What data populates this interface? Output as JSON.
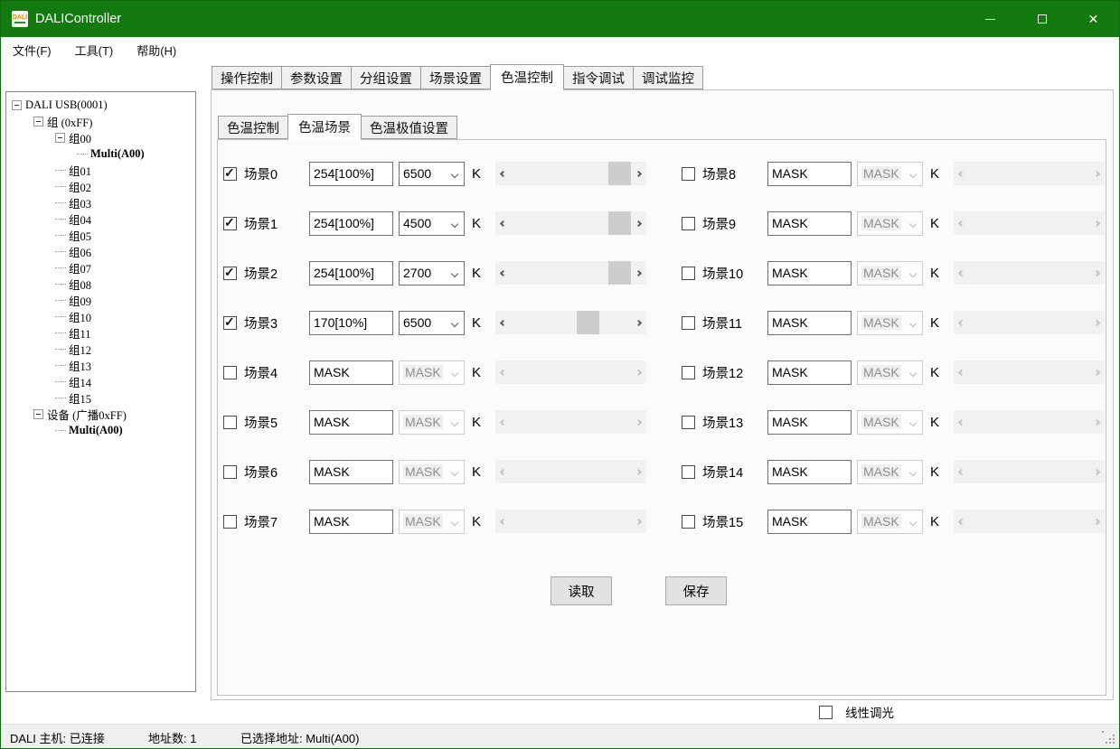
{
  "window": {
    "title": "DALIController",
    "icon_text": "DALI"
  },
  "menu": {
    "items": [
      "文件(F)",
      "工具(T)",
      "帮助(H)"
    ]
  },
  "tree": {
    "items": [
      {
        "depth": 0,
        "label": "DALI USB(0001)",
        "expander": true,
        "strong": false
      },
      {
        "depth": 1,
        "label": "组 (0xFF)",
        "expander": true,
        "strong": false
      },
      {
        "depth": 2,
        "label": "组00",
        "expander": true,
        "strong": false
      },
      {
        "depth": 3,
        "label": "Multi(A00)",
        "expander": false,
        "strong": true
      },
      {
        "depth": 2,
        "label": "组01",
        "expander": false,
        "strong": false
      },
      {
        "depth": 2,
        "label": "组02",
        "expander": false,
        "strong": false
      },
      {
        "depth": 2,
        "label": "组03",
        "expander": false,
        "strong": false
      },
      {
        "depth": 2,
        "label": "组04",
        "expander": false,
        "strong": false
      },
      {
        "depth": 2,
        "label": "组05",
        "expander": false,
        "strong": false
      },
      {
        "depth": 2,
        "label": "组06",
        "expander": false,
        "strong": false
      },
      {
        "depth": 2,
        "label": "组07",
        "expander": false,
        "strong": false
      },
      {
        "depth": 2,
        "label": "组08",
        "expander": false,
        "strong": false
      },
      {
        "depth": 2,
        "label": "组09",
        "expander": false,
        "strong": false
      },
      {
        "depth": 2,
        "label": "组10",
        "expander": false,
        "strong": false
      },
      {
        "depth": 2,
        "label": "组11",
        "expander": false,
        "strong": false
      },
      {
        "depth": 2,
        "label": "组12",
        "expander": false,
        "strong": false
      },
      {
        "depth": 2,
        "label": "组13",
        "expander": false,
        "strong": false
      },
      {
        "depth": 2,
        "label": "组14",
        "expander": false,
        "strong": false
      },
      {
        "depth": 2,
        "label": "组15",
        "expander": false,
        "strong": false
      },
      {
        "depth": 1,
        "label": "设备 (广播0xFF)",
        "expander": true,
        "strong": false
      },
      {
        "depth": 2,
        "label": "Multi(A00)",
        "expander": false,
        "strong": true
      }
    ]
  },
  "tabs": {
    "items": [
      "操作控制",
      "参数设置",
      "分组设置",
      "场景设置",
      "色温控制",
      "指令调试",
      "调试监控"
    ],
    "selected": "色温控制"
  },
  "subtabs": {
    "items": [
      "色温控制",
      "色温场景",
      "色温极值设置"
    ],
    "selected": "色温场景"
  },
  "scenes": {
    "unit": "K",
    "left": [
      {
        "label": "场景0",
        "checked": true,
        "value": "254[100%]",
        "kelvin": "6500",
        "enabled": true,
        "thumb": 1
      },
      {
        "label": "场景1",
        "checked": true,
        "value": "254[100%]",
        "kelvin": "4500",
        "enabled": true,
        "thumb": 1
      },
      {
        "label": "场景2",
        "checked": true,
        "value": "254[100%]",
        "kelvin": "2700",
        "enabled": true,
        "thumb": 1
      },
      {
        "label": "场景3",
        "checked": true,
        "value": "170[10%]",
        "kelvin": "6500",
        "enabled": true,
        "thumb": 0.68
      },
      {
        "label": "场景4",
        "checked": false,
        "value": "MASK",
        "kelvin": "MASK",
        "enabled": false,
        "thumb": null
      },
      {
        "label": "场景5",
        "checked": false,
        "value": "MASK",
        "kelvin": "MASK",
        "enabled": false,
        "thumb": null
      },
      {
        "label": "场景6",
        "checked": false,
        "value": "MASK",
        "kelvin": "MASK",
        "enabled": false,
        "thumb": null
      },
      {
        "label": "场景7",
        "checked": false,
        "value": "MASK",
        "kelvin": "MASK",
        "enabled": false,
        "thumb": null
      }
    ],
    "right": [
      {
        "label": "场景8",
        "checked": false,
        "value": "MASK",
        "kelvin": "MASK",
        "enabled": false,
        "thumb": null
      },
      {
        "label": "场景9",
        "checked": false,
        "value": "MASK",
        "kelvin": "MASK",
        "enabled": false,
        "thumb": null
      },
      {
        "label": "场景10",
        "checked": false,
        "value": "MASK",
        "kelvin": "MASK",
        "enabled": false,
        "thumb": null
      },
      {
        "label": "场景11",
        "checked": false,
        "value": "MASK",
        "kelvin": "MASK",
        "enabled": false,
        "thumb": null
      },
      {
        "label": "场景12",
        "checked": false,
        "value": "MASK",
        "kelvin": "MASK",
        "enabled": false,
        "thumb": null
      },
      {
        "label": "场景13",
        "checked": false,
        "value": "MASK",
        "kelvin": "MASK",
        "enabled": false,
        "thumb": null
      },
      {
        "label": "场景14",
        "checked": false,
        "value": "MASK",
        "kelvin": "MASK",
        "enabled": false,
        "thumb": null
      },
      {
        "label": "场景15",
        "checked": false,
        "value": "MASK",
        "kelvin": "MASK",
        "enabled": false,
        "thumb": null
      }
    ]
  },
  "actions": {
    "read": "读取",
    "save": "保存"
  },
  "footer": {
    "linear_dimming": "线性调光",
    "linear_checked": false
  },
  "statusbar": {
    "host": "DALI 主机: 已连接",
    "addr_count": "地址数: 1",
    "selected_addr": "已选择地址: Multi(A00)"
  },
  "icons": {
    "close": "✕",
    "check": "✓"
  },
  "colors": {
    "titlebar": "#137a10",
    "window_border": "#0e6b0e",
    "scrollbar_thumb": "#cdcdcd",
    "control_bg": "#f0f0f0",
    "button_bg": "#e2e2e2"
  }
}
